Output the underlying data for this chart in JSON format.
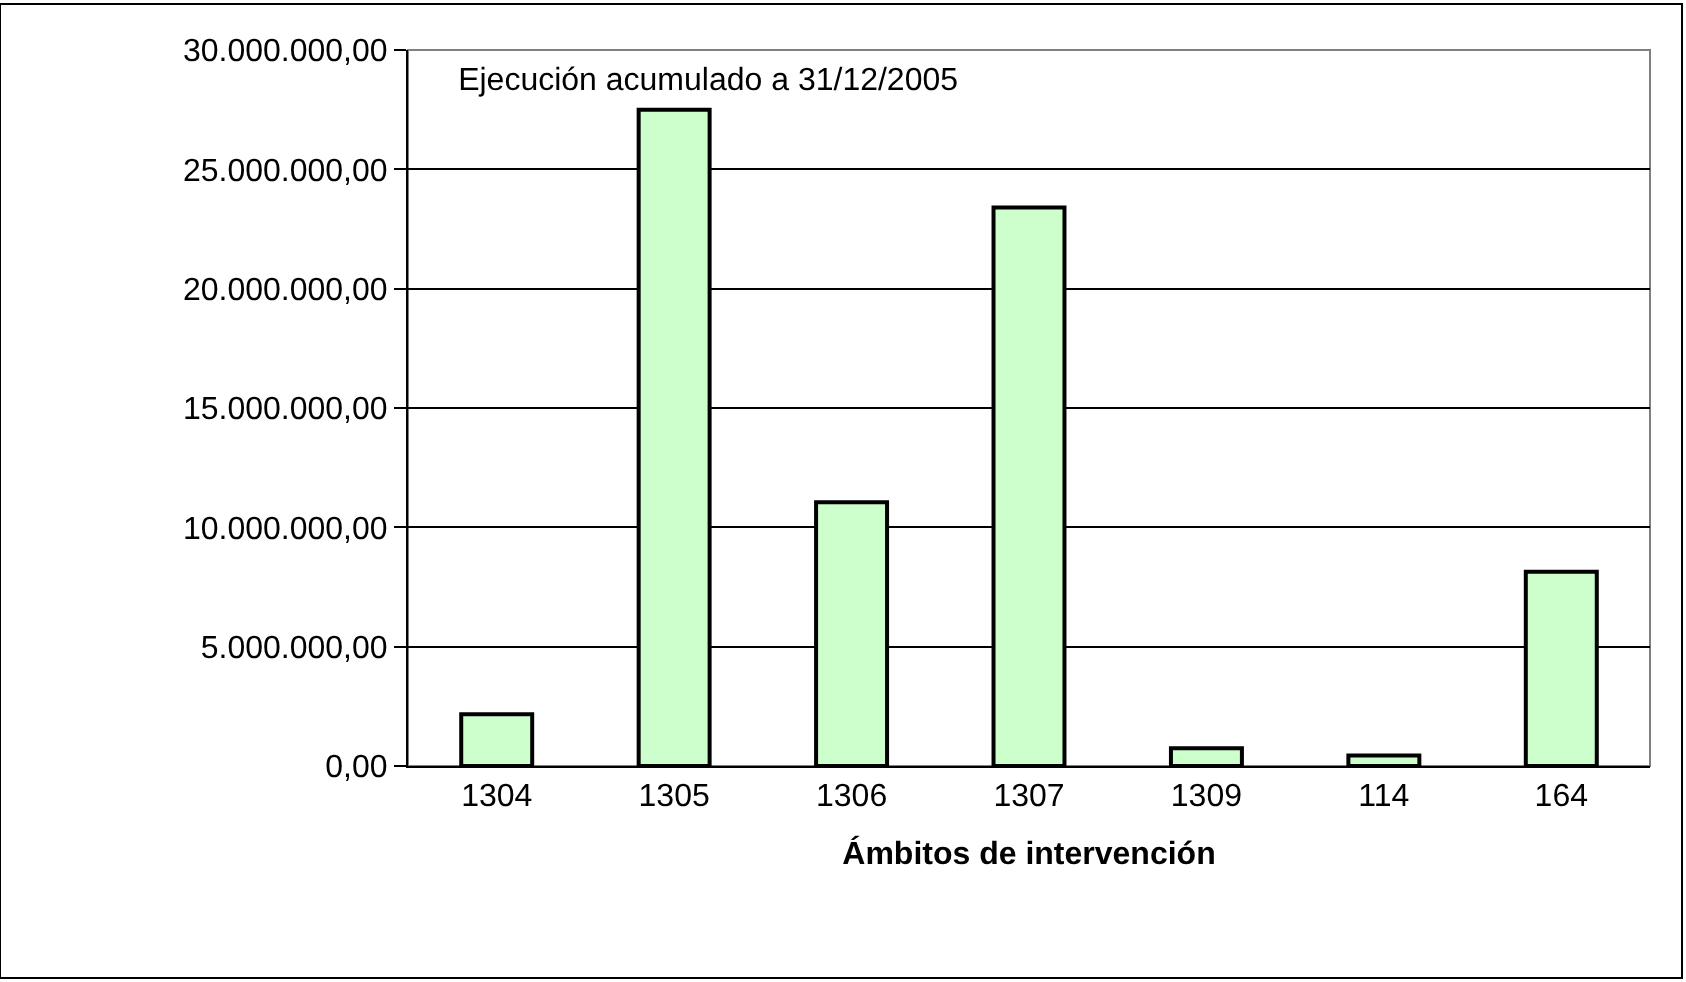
{
  "chart_data": {
    "type": "bar",
    "title": "Ejecución acumulado a 31/12/2005",
    "xlabel": "Ámbitos de intervención",
    "categories": [
      "1304",
      "1305",
      "1306",
      "1307",
      "1309",
      "114",
      "164"
    ],
    "values": [
      2170000,
      27500000,
      11050000,
      23400000,
      740000,
      440000,
      8140000
    ],
    "color": "#ccffcc",
    "ylim": [
      0,
      30000000
    ],
    "yticks": [
      {
        "value": 0,
        "label": "0,00"
      },
      {
        "value": 5000000,
        "label": "5.000.000,00"
      },
      {
        "value": 10000000,
        "label": "10.000.000,00"
      },
      {
        "value": 15000000,
        "label": "15.000.000,00"
      },
      {
        "value": 20000000,
        "label": "20.000.000,00"
      },
      {
        "value": 25000000,
        "label": "25.000.000,00"
      },
      {
        "value": 30000000,
        "label": "30.000.000,00"
      }
    ],
    "grid": "y",
    "legend": false
  }
}
